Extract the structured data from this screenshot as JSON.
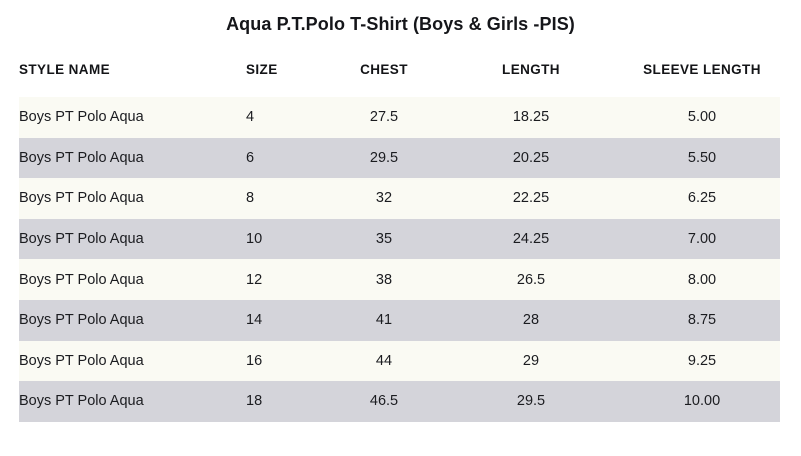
{
  "chart_data": {
    "type": "table",
    "title": "Aqua P.T.Polo T-Shirt (Boys & Girls -PIS)",
    "columns": [
      "STYLE NAME",
      "SIZE",
      "CHEST",
      "LENGTH",
      "SLEEVE LENGTH"
    ],
    "rows": [
      [
        "Boys PT Polo Aqua",
        "4",
        "27.5",
        "18.25",
        "5.00"
      ],
      [
        "Boys PT Polo Aqua",
        "6",
        "29.5",
        "20.25",
        "5.50"
      ],
      [
        "Boys PT Polo Aqua",
        "8",
        "32",
        "22.25",
        "6.25"
      ],
      [
        "Boys PT Polo Aqua",
        "10",
        "35",
        "24.25",
        "7.00"
      ],
      [
        "Boys PT Polo Aqua",
        "12",
        "38",
        "26.5",
        "8.00"
      ],
      [
        "Boys PT Polo Aqua",
        "14",
        "41",
        "28",
        "8.75"
      ],
      [
        "Boys PT Polo Aqua",
        "16",
        "44",
        "29",
        "9.25"
      ],
      [
        "Boys PT Polo Aqua",
        "18",
        "46.5",
        "29.5",
        "10.00"
      ]
    ],
    "layout": {
      "striped": true,
      "header_background": "#ffffff"
    }
  },
  "colors": {
    "row_base": "#fafaf3",
    "row_stripe": "#d4d4da",
    "text": "#17181c",
    "background": "#ffffff"
  }
}
